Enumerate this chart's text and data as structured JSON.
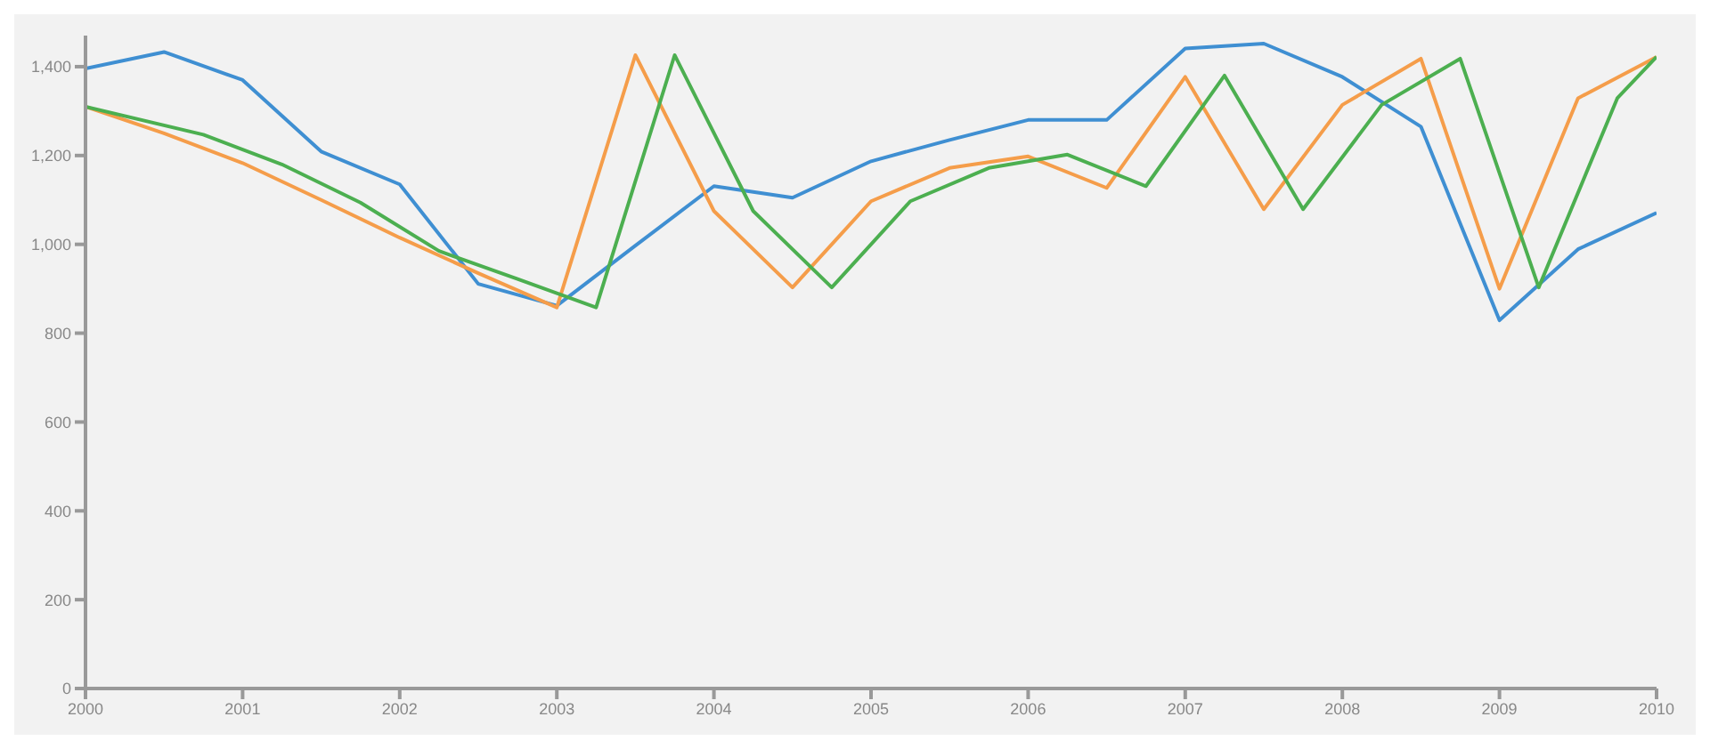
{
  "chart_data": {
    "type": "line",
    "xlim": [
      2000,
      2010
    ],
    "xticks": [
      2000,
      2001,
      2002,
      2003,
      2004,
      2005,
      2006,
      2007,
      2008,
      2009,
      2010
    ],
    "ylim": [
      0,
      1470
    ],
    "yticks": [
      0,
      200,
      400,
      600,
      800,
      {
        "value": 1000,
        "label": "1,000"
      },
      {
        "value": 1200,
        "label": "1,200"
      },
      {
        "value": 1400,
        "label": "1,400"
      }
    ],
    "grid": false,
    "marker": "none",
    "line_style": "solid",
    "series": [
      {
        "color": "#3f8fd2",
        "x": [
          2000,
          2000.5,
          2001,
          2001.5,
          2002,
          2002.5,
          2003,
          2003.5,
          2004,
          2004.5,
          2005,
          2005.5,
          2006,
          2006.5,
          2007,
          2007.5,
          2008,
          2008.5,
          2009,
          2009.5,
          2010
        ],
        "values": [
          1396,
          1433,
          1370,
          1209,
          1135,
          911,
          862,
          997,
          1131,
          1105,
          1187,
          1235,
          1280,
          1280,
          1441,
          1452,
          1377,
          1265,
          829,
          989,
          1071
        ]
      },
      {
        "color": "#f59d4a",
        "x": [
          2000,
          2000.5,
          2001,
          2001.5,
          2002,
          2002.5,
          2003,
          2003.5,
          2004,
          2004.5,
          2005,
          2005.5,
          2006,
          2006.5,
          2007,
          2007.5,
          2008,
          2008.5,
          2009,
          2009.5,
          2010
        ],
        "values": [
          1310,
          1250,
          1183,
          1100,
          1015,
          935,
          858,
          1426,
          1075,
          903,
          1097,
          1172,
          1198,
          1127,
          1377,
          1079,
          1314,
          1418,
          900,
          1329,
          1422
        ]
      },
      {
        "color": "#4caf50",
        "x": [
          2000,
          2000.75,
          2001.25,
          2001.75,
          2002.25,
          2002.75,
          2003.25,
          2003.75,
          2004.25,
          2004.75,
          2005.25,
          2005.75,
          2006.25,
          2006.75,
          2007.25,
          2007.75,
          2008.25,
          2008.75,
          2009.25,
          2009.75,
          2010
        ],
        "values": [
          1310,
          1247,
          1180,
          1094,
          985,
          922,
          858,
          1426,
          1075,
          903,
          1097,
          1172,
          1202,
          1131,
          1380,
          1079,
          1314,
          1418,
          903,
          1329,
          1422
        ]
      }
    ]
  }
}
